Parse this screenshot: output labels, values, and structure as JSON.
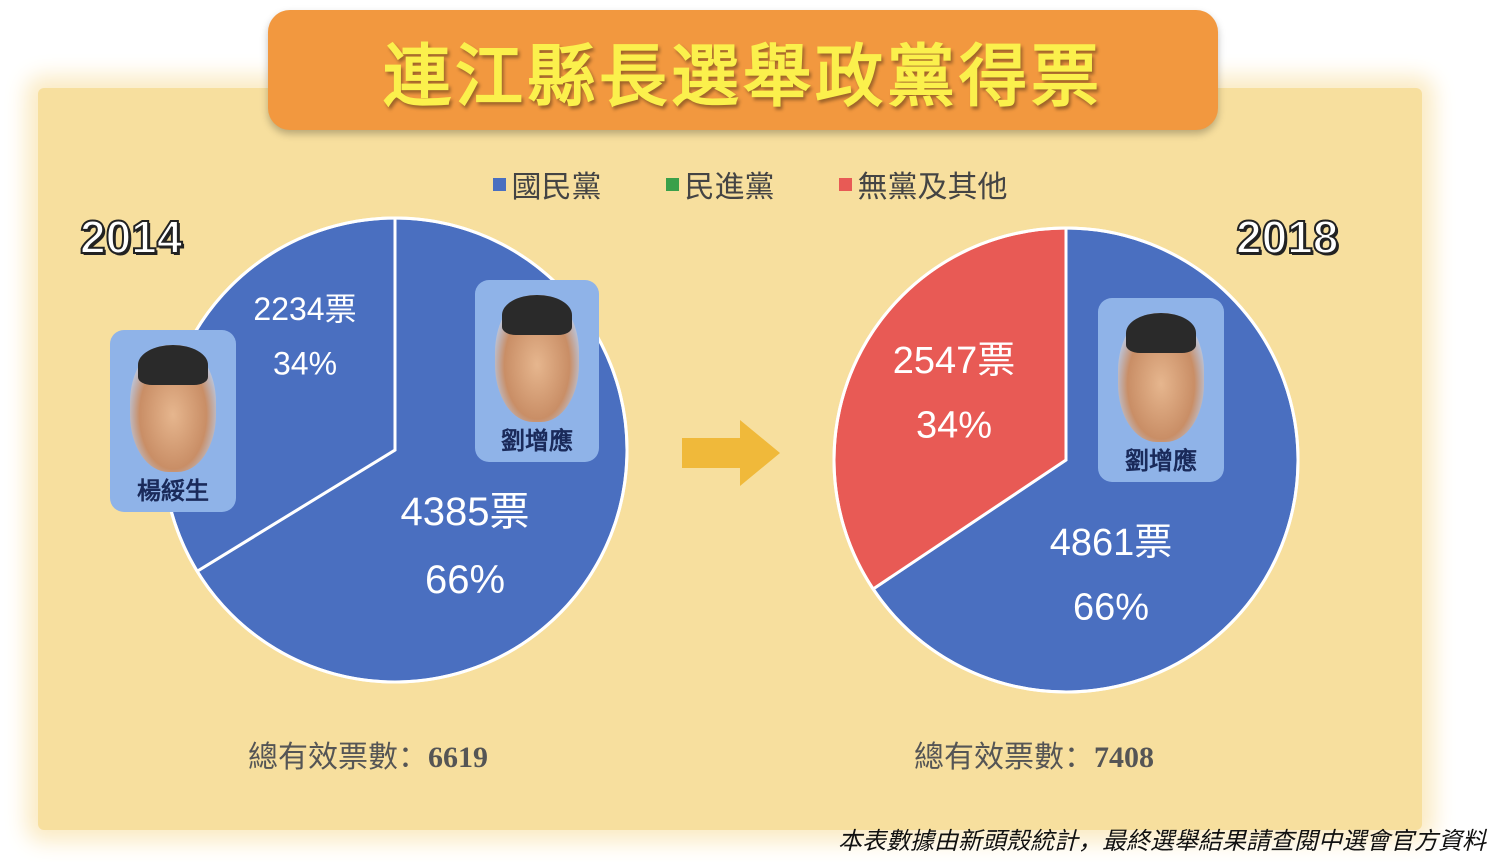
{
  "title": "連江縣長選舉政黨得票",
  "legend": [
    {
      "label": "國民黨",
      "color": "#4a6fc0"
    },
    {
      "label": "民進黨",
      "color": "#3aa04a"
    },
    {
      "label": "無黨及其他",
      "color": "#e85a55"
    }
  ],
  "chart_data": [
    {
      "type": "pie",
      "year": "2014",
      "slices": [
        {
          "series": "國民黨",
          "candidate": "劉增應",
          "votes": 4385,
          "votes_label": "4385票",
          "percent_label": "66%",
          "color": "#4a6fc0"
        },
        {
          "series": "國民黨",
          "candidate": "楊綏生",
          "votes": 2234,
          "votes_label": "2234票",
          "percent_label": "34%",
          "color": "#4a6fc0"
        }
      ],
      "total_label": "總有效票數：",
      "total_value": "6619"
    },
    {
      "type": "pie",
      "year": "2018",
      "slices": [
        {
          "series": "國民黨",
          "candidate": "劉增應",
          "votes": 4861,
          "votes_label": "4861票",
          "percent_label": "66%",
          "color": "#4a6fc0"
        },
        {
          "series": "無黨及其他",
          "candidate": "",
          "votes": 2547,
          "votes_label": "2547票",
          "percent_label": "34%",
          "color": "#e85a55"
        }
      ],
      "total_label": "總有效票數：",
      "total_value": "7408"
    }
  ],
  "footnote": "本表數據由新頭殼統計，最終選舉結果請查閱中選會官方資料"
}
